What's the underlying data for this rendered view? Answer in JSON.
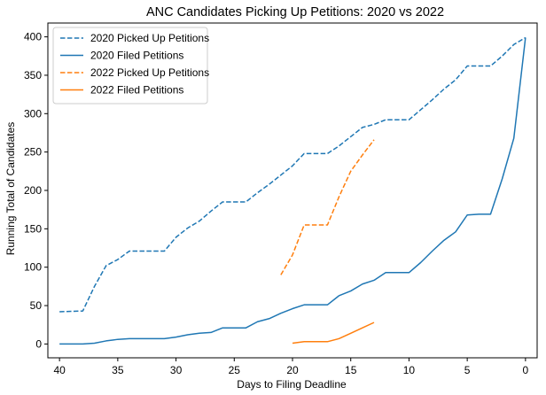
{
  "chart_data": {
    "type": "line",
    "title": "ANC Candidates Picking Up Petitions: 2020 vs 2022",
    "xlabel": "Days to Filing Deadline",
    "ylabel": "Running Total of Candidates",
    "xlim": [
      41,
      -1
    ],
    "ylim": [
      -18,
      418
    ],
    "x_inverted": true,
    "xticks": [
      40,
      35,
      30,
      25,
      20,
      15,
      10,
      5,
      0
    ],
    "yticks": [
      0,
      50,
      100,
      150,
      200,
      250,
      300,
      350,
      400
    ],
    "grid": false,
    "legend_position": "top-left",
    "series": [
      {
        "name": "2020 Picked Up Petitions",
        "color": "#1f77b4",
        "style": "dashed",
        "x": [
          40,
          38,
          37,
          36,
          35,
          34,
          33,
          32,
          31,
          30,
          29,
          28,
          27,
          26,
          25,
          24,
          23,
          22,
          21,
          20,
          19,
          18,
          17,
          16,
          15,
          14,
          13,
          12,
          11,
          10,
          9,
          8,
          7,
          6,
          5,
          4,
          3,
          2,
          1,
          0
        ],
        "y": [
          42,
          43,
          75,
          102,
          110,
          121,
          121,
          121,
          121,
          139,
          151,
          160,
          173,
          185,
          185,
          185,
          197,
          208,
          220,
          232,
          248,
          248,
          248,
          258,
          270,
          282,
          286,
          292,
          292,
          292,
          305,
          318,
          332,
          344,
          362,
          362,
          362,
          375,
          390,
          399
        ]
      },
      {
        "name": "2020 Filed Petitions",
        "color": "#1f77b4",
        "style": "solid",
        "x": [
          40,
          38,
          37,
          36,
          35,
          34,
          33,
          32,
          31,
          30,
          29,
          28,
          27,
          26,
          25,
          24,
          23,
          22,
          21,
          20,
          19,
          18,
          17,
          16,
          15,
          14,
          13,
          12,
          11,
          10,
          9,
          8,
          7,
          6,
          5,
          4,
          3,
          2,
          1,
          0
        ],
        "y": [
          0,
          0,
          1,
          4,
          6,
          7,
          7,
          7,
          7,
          9,
          12,
          14,
          15,
          21,
          21,
          21,
          29,
          33,
          40,
          46,
          51,
          51,
          51,
          63,
          69,
          78,
          83,
          93,
          93,
          93,
          106,
          121,
          135,
          146,
          168,
          169,
          169,
          215,
          268,
          399
        ]
      },
      {
        "name": "2022 Picked Up Petitions",
        "color": "#ff7f0e",
        "style": "dashed",
        "x": [
          21,
          20,
          19,
          18,
          17,
          16,
          15,
          14,
          13
        ],
        "y": [
          90,
          116,
          155,
          155,
          155,
          192,
          225,
          246,
          266
        ]
      },
      {
        "name": "2022 Filed Petitions",
        "color": "#ff7f0e",
        "style": "solid",
        "x": [
          20,
          19,
          18,
          17,
          16,
          15,
          14,
          13
        ],
        "y": [
          1,
          3,
          3,
          3,
          7,
          14,
          21,
          28
        ]
      }
    ]
  }
}
